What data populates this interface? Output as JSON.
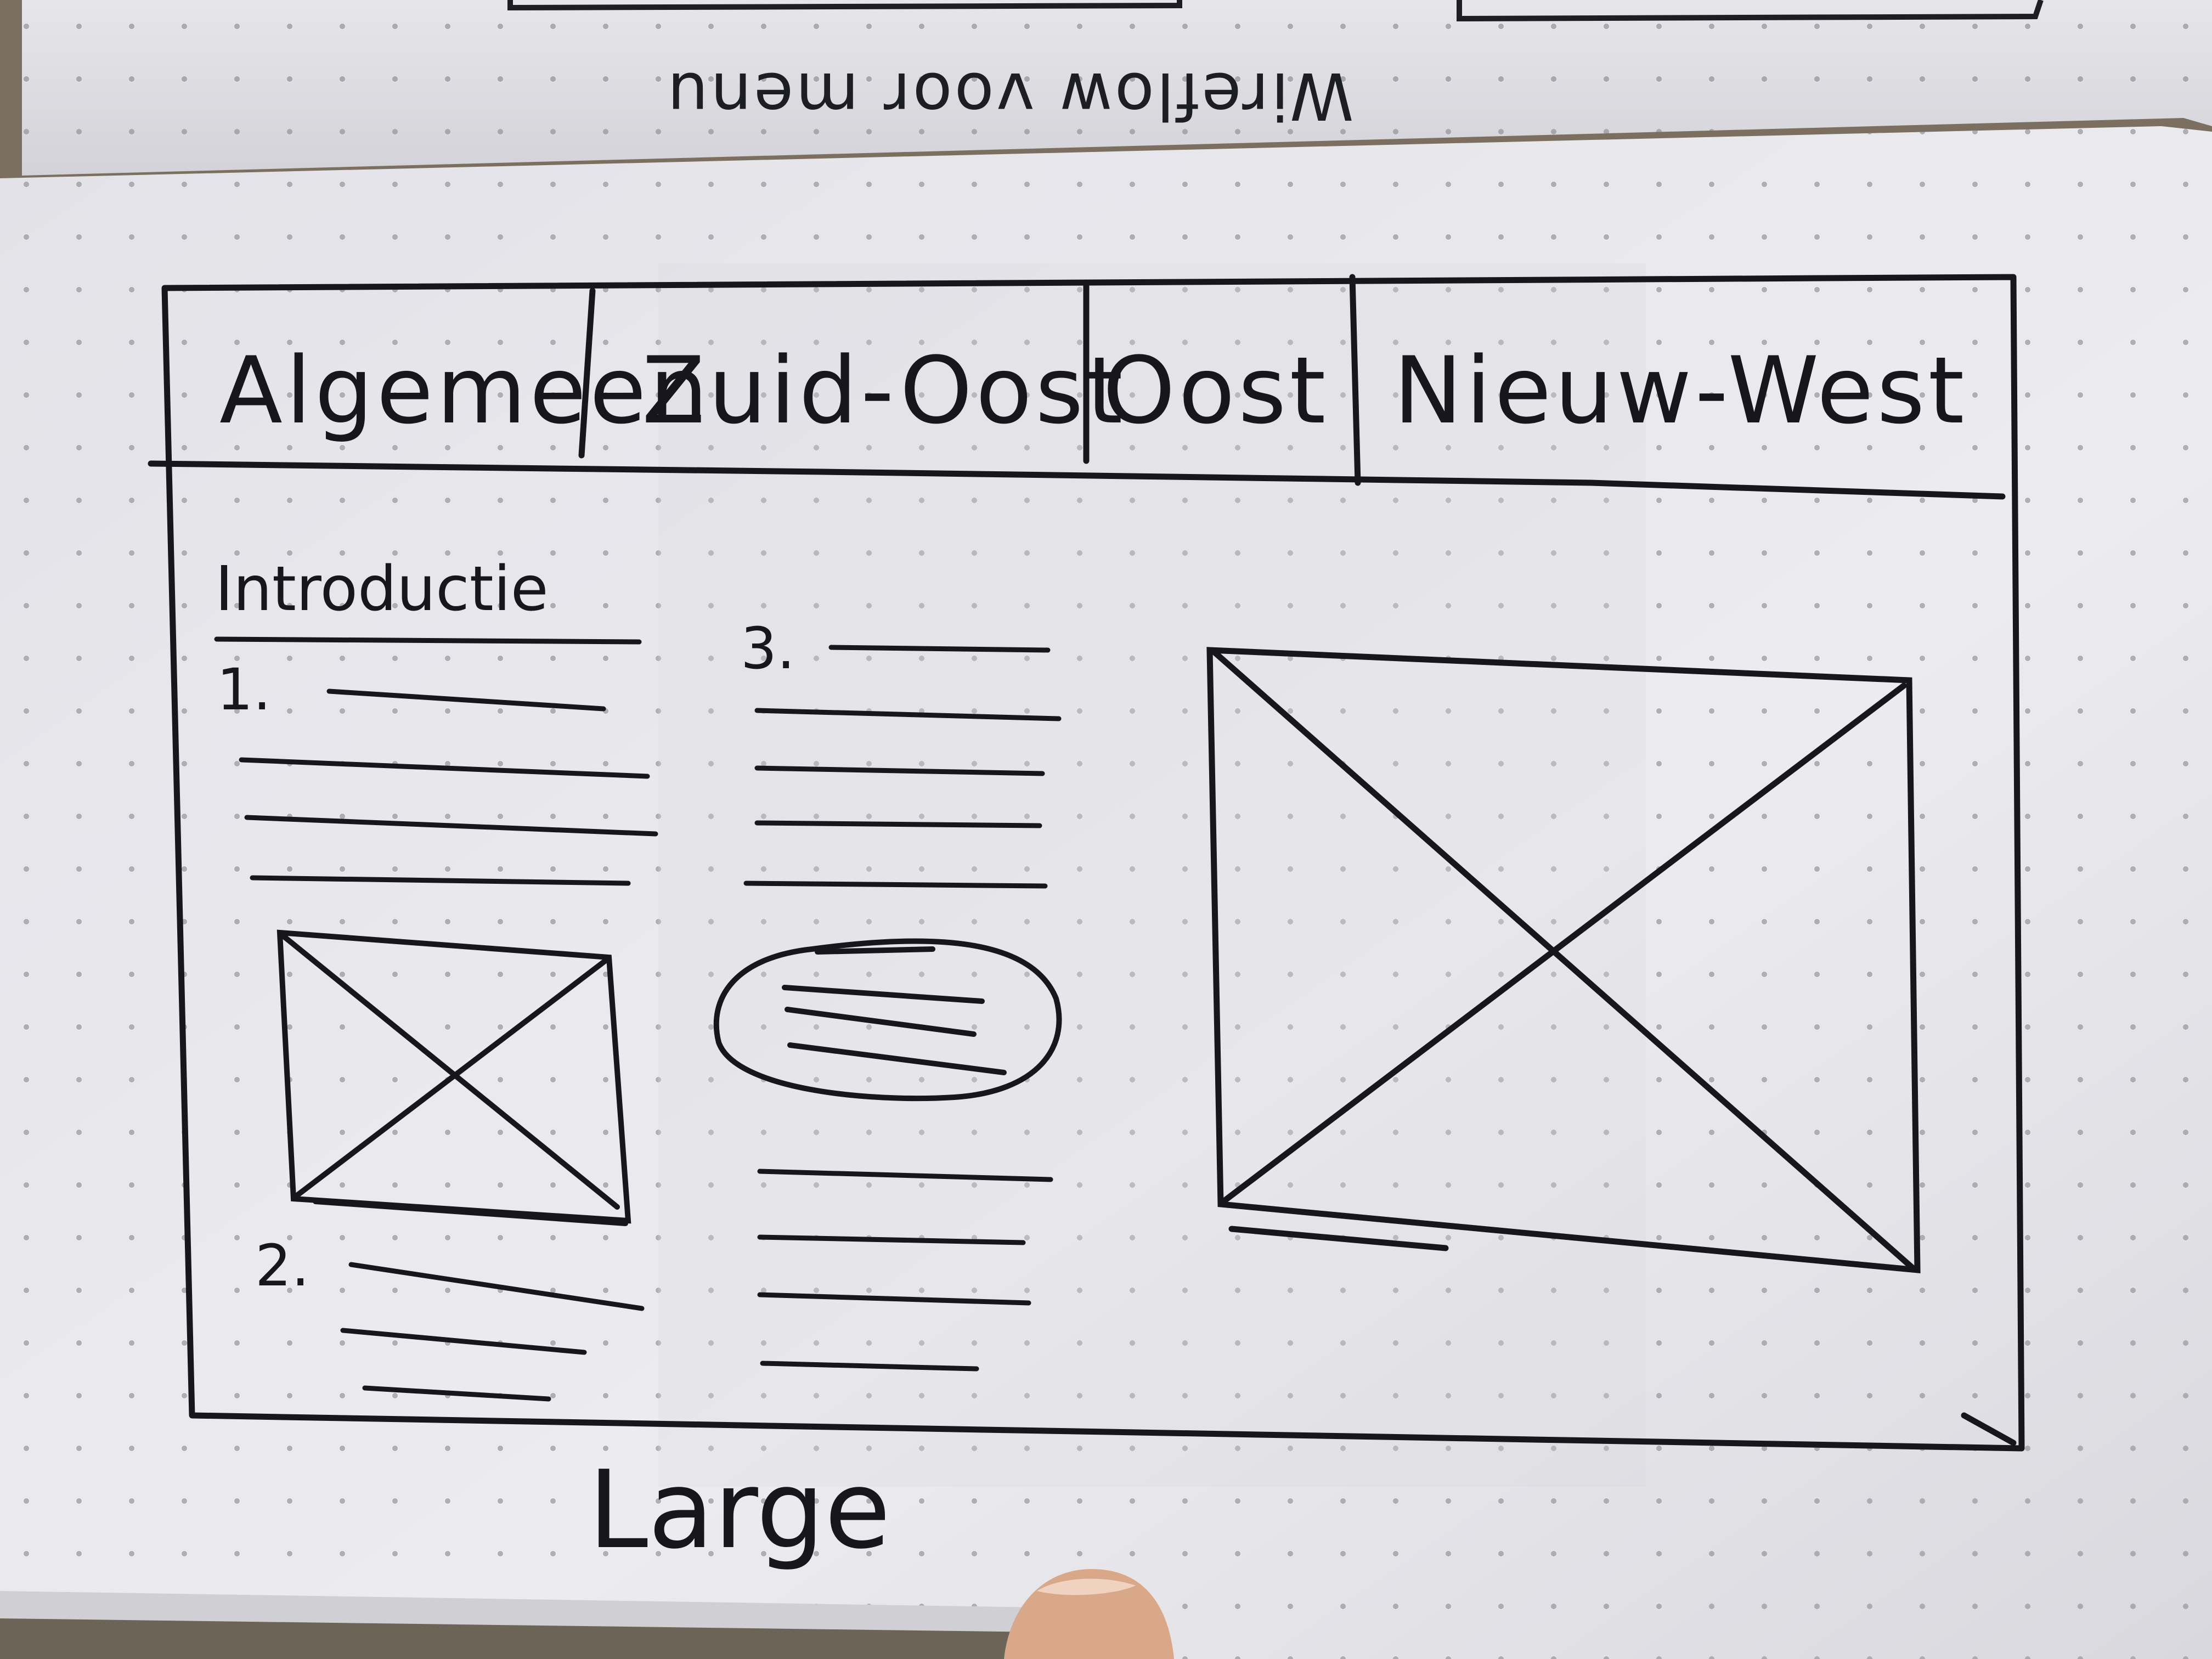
{
  "top_page": {
    "upside_down_caption": "Wireflow voor menu"
  },
  "sketch": {
    "tabs": [
      "Algemeen",
      "Zuid-Oost",
      "Oost",
      "Nieuw-West"
    ],
    "intro_heading": "Introductie",
    "list_numbers": [
      "1.",
      "2.",
      "3."
    ],
    "image_placeholders": [
      "small-image-placeholder",
      "large-image-placeholder"
    ],
    "caption": "Large"
  },
  "colors": {
    "ink": "#16161c",
    "paper": "#e9e9ee",
    "dot": "#9a9aa4",
    "thumb": "#d9a889"
  }
}
